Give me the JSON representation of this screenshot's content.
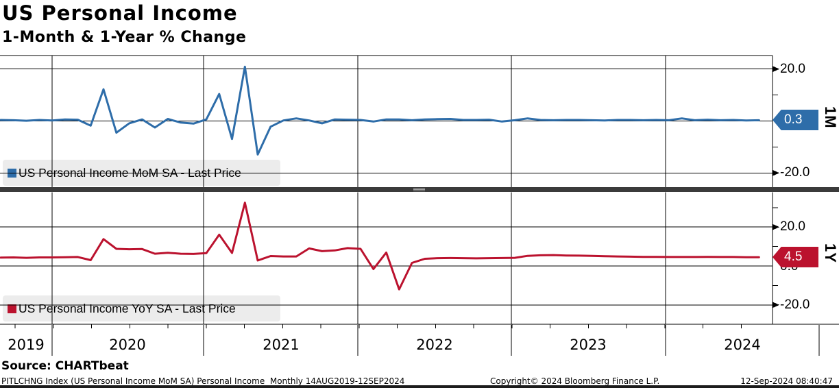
{
  "header": {
    "title": "US Personal Income",
    "subtitle": "1-Month & 1-Year % Change"
  },
  "source_line": "Source: CHARTbeat",
  "footer": {
    "left": "PITLCHNG Index (US Personal Income MoM SA) Personal Income  Monthly 14AUG2019-12SEP2024",
    "copyright": "Copyright© 2024 Bloomberg Finance L.P.",
    "timestamp": "12-Sep-2024 08:40:47"
  },
  "colors": {
    "mom_blue": "#2e6da9",
    "yoy_red": "#bb122e",
    "separator": "#3b3b3b",
    "legend_bg": "#ececec"
  },
  "chart_data": {
    "type": "line",
    "title": "US Personal Income",
    "subtitle": "1-Month & 1-Year % Change",
    "x": {
      "start": "2019-08",
      "end": "2024-07",
      "frequency": "monthly",
      "tick_years": [
        "2019",
        "2020",
        "2021",
        "2022",
        "2023",
        "2024"
      ]
    },
    "panels": [
      {
        "name": "US Personal Income MoM SA",
        "legend": "US Personal Income MoM SA - Last Price",
        "unit": "1M",
        "last_price": 0.3,
        "last_price_label": "0.3",
        "color": "#2e6da9",
        "ylim": [
          -25,
          25
        ],
        "y_ticks": {
          "labeled": [
            20,
            -20
          ],
          "labels": [
            "20.0",
            "-20.0"
          ],
          "minor": [
            10,
            -10
          ]
        },
        "values": [
          0.4,
          0.3,
          0.1,
          0.4,
          0.2,
          0.6,
          0.5,
          -1.8,
          12.2,
          -4.5,
          -0.9,
          0.6,
          -2.5,
          0.8,
          -0.6,
          -1.0,
          0.6,
          10.4,
          -6.9,
          20.9,
          -12.9,
          -2.2,
          0.2,
          1.0,
          0.2,
          -0.9,
          0.6,
          0.5,
          0.4,
          -0.2,
          0.6,
          0.6,
          0.3,
          0.6,
          0.7,
          0.8,
          0.4,
          0.4,
          0.5,
          -0.2,
          0.3,
          1.0,
          0.4,
          0.3,
          0.4,
          0.4,
          0.3,
          0.2,
          0.4,
          0.4,
          0.3,
          0.4,
          0.3,
          1.0,
          0.3,
          0.5,
          0.3,
          0.4,
          0.2,
          0.3
        ]
      },
      {
        "name": "US Personal Income YoY SA",
        "legend": "US Personal Income YoY SA - Last Price",
        "unit": "1Y",
        "last_price": 4.5,
        "last_price_label": "4.5",
        "color": "#bb122e",
        "ylim": [
          -30,
          38
        ],
        "y_ticks": {
          "labeled": [
            20,
            0,
            -20
          ],
          "labels": [
            "20.0",
            "0.0",
            "-20.0"
          ],
          "minor": [
            30,
            10,
            -10
          ]
        },
        "values": [
          4.3,
          4.4,
          4.2,
          4.4,
          4.4,
          4.5,
          4.6,
          3.0,
          13.8,
          8.8,
          8.6,
          8.7,
          6.3,
          6.8,
          6.3,
          6.2,
          6.6,
          16.1,
          6.7,
          32.5,
          2.8,
          5.1,
          4.9,
          4.9,
          9.0,
          7.6,
          8.0,
          9.2,
          8.8,
          -1.6,
          6.9,
          -12.0,
          1.6,
          3.7,
          4.0,
          4.1,
          4.0,
          3.9,
          4.0,
          4.1,
          4.2,
          5.2,
          5.5,
          5.6,
          5.4,
          5.3,
          5.2,
          5.0,
          4.9,
          4.8,
          4.7,
          4.7,
          4.6,
          4.6,
          4.6,
          4.7,
          4.6,
          4.6,
          4.5,
          4.5
        ]
      }
    ]
  }
}
